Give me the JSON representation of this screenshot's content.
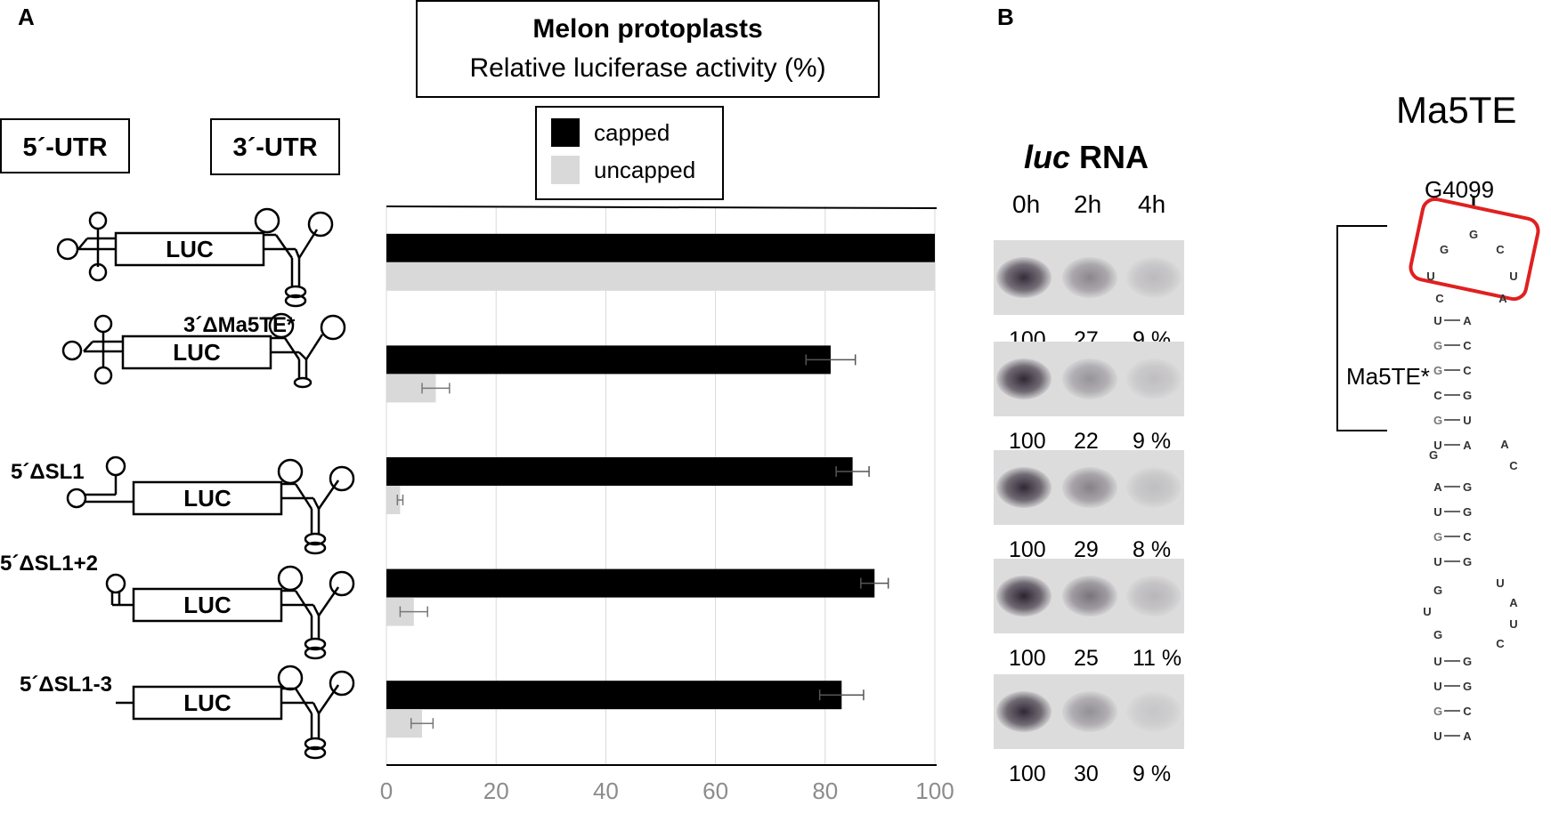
{
  "panel_a_letter": "A",
  "panel_b_letter": "B",
  "header": {
    "title": "Melon protoplasts",
    "subtitle": "Relative luciferase activity (%)"
  },
  "utr5_label": "5´-UTR",
  "utr3_label": "3´-UTR",
  "legend": [
    {
      "label": "capped",
      "color": "#000000"
    },
    {
      "label": "uncapped",
      "color": "#d9d9d9"
    }
  ],
  "luc_text": "LUC",
  "constructs": [
    {
      "label": ""
    },
    {
      "label": "3´ΔMa5TE*"
    },
    {
      "label": "5´ΔSL1"
    },
    {
      "label": "5´ΔSL1+2"
    },
    {
      "label": "5´ΔSL1-3"
    }
  ],
  "chart_data": {
    "type": "bar",
    "orientation": "horizontal",
    "categories": [
      "",
      "3´ΔMa5TE*",
      "5´ΔSL1",
      "5´ΔSL1+2",
      "5´ΔSL1-3"
    ],
    "series": [
      {
        "name": "capped",
        "color": "#000000",
        "values": [
          100,
          81,
          85,
          89,
          83
        ],
        "errors": [
          0,
          4.5,
          3,
          2.5,
          4
        ]
      },
      {
        "name": "uncapped",
        "color": "#d9d9d9",
        "values": [
          100,
          9,
          2.5,
          5,
          6.5
        ],
        "errors": [
          0,
          2.5,
          0.5,
          2.5,
          2
        ]
      }
    ],
    "xlim": [
      0,
      100
    ],
    "xticks": [
      "0",
      "20",
      "40",
      "60",
      "80",
      "100"
    ],
    "grid": true
  },
  "luc_rna_title": {
    "italic": "luc",
    "rest": " RNA"
  },
  "timepoints": [
    "0h",
    "2h",
    "4h"
  ],
  "blot_values": [
    [
      "100",
      "27",
      "9 %"
    ],
    [
      "100",
      "22",
      "9 %"
    ],
    [
      "100",
      "29",
      "8 %"
    ],
    [
      "100",
      "25",
      "11 %"
    ],
    [
      "100",
      "30",
      "9 %"
    ]
  ],
  "ma5te_title": "Ma5TE",
  "g4099_label": "G4099",
  "ma5te_star_label": "Ma5TE*",
  "structure": {
    "loop_bases": [
      "G",
      "C",
      "U",
      "A",
      "C",
      "U",
      "G"
    ],
    "stem1_pairs": [
      [
        "U",
        "A"
      ],
      [
        "G",
        "C"
      ],
      [
        "G",
        "C"
      ],
      [
        "C",
        "G"
      ],
      [
        "G",
        "U"
      ],
      [
        "U",
        "A"
      ]
    ],
    "bulge1": [
      "A",
      "C",
      "G"
    ],
    "stem2_pairs": [
      [
        "A",
        "G"
      ],
      [
        "U",
        "G"
      ],
      [
        "G",
        "C"
      ],
      [
        "U",
        "G"
      ]
    ],
    "loop2": [
      "U",
      "A",
      "U",
      "C",
      "G",
      "U",
      "G"
    ],
    "stem3_pairs": [
      [
        "U",
        "G"
      ],
      [
        "U",
        "G"
      ],
      [
        "G",
        "C"
      ],
      [
        "U",
        "A"
      ]
    ]
  }
}
